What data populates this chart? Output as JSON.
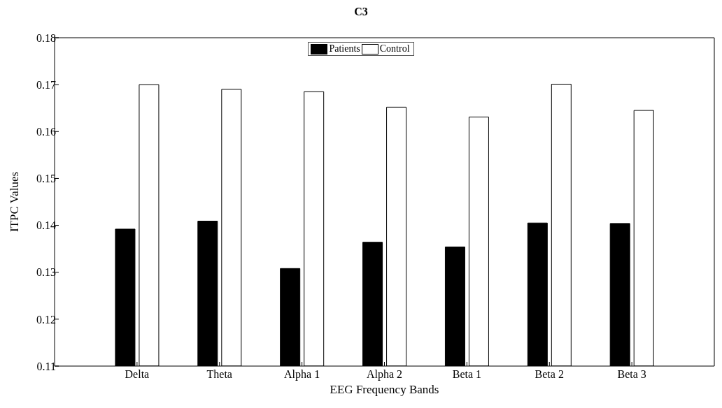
{
  "chart_data": {
    "type": "bar",
    "title": "C3",
    "xlabel": "EEG Frequency Bands",
    "ylabel": "ITPC Values",
    "categories": [
      "Delta",
      "Theta",
      "Alpha 1",
      "Alpha 2",
      "Beta 1",
      "Beta 2",
      "Beta 3"
    ],
    "series": [
      {
        "name": "Patients",
        "color": "#000000",
        "values": [
          0.1392,
          0.1409,
          0.1308,
          0.1364,
          0.1354,
          0.1405,
          0.1404
        ]
      },
      {
        "name": "Control",
        "color": "#ffffff",
        "values": [
          0.17,
          0.169,
          0.1685,
          0.1652,
          0.1631,
          0.1701,
          0.1645
        ]
      }
    ],
    "ylim": [
      0.11,
      0.18
    ],
    "yticks": [
      0.11,
      0.12,
      0.13,
      0.14,
      0.15,
      0.16,
      0.17,
      0.18
    ],
    "grid": false,
    "legend": "top"
  }
}
